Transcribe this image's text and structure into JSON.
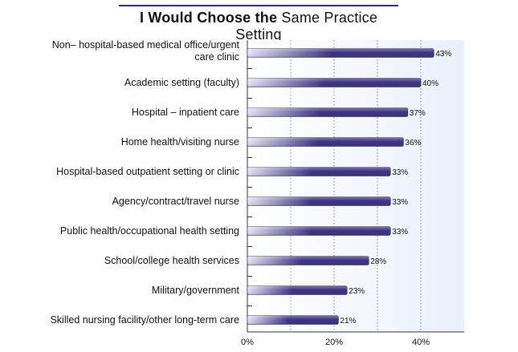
{
  "title": {
    "bold_part": "I Would Choose the",
    "regular_part": "Same Practice Setting"
  },
  "colors": {
    "bar_dark": "#3b2f80",
    "bar_light": "#e4e2f2",
    "panel_bg": "#eaf0fb",
    "title_rule": "#2e2a6b"
  },
  "chart_data": {
    "type": "bar",
    "orientation": "horizontal",
    "title": "I Would Choose the Same Practice Setting",
    "categories": [
      [
        "Non– hospital-based medical office/urgent",
        "care clinic"
      ],
      [
        "Academic setting (faculty)"
      ],
      [
        "Hospital –  inpatient care"
      ],
      [
        "Home health/visiting nurse"
      ],
      [
        "Hospital-based outpatient setting or clinic"
      ],
      [
        "Agency/contract/travel nurse"
      ],
      [
        "Public health/occupational health setting"
      ],
      [
        "School/college health services"
      ],
      [
        "Military/government"
      ],
      [
        "Skilled nursing facility/other long-term care"
      ]
    ],
    "values": [
      43,
      40,
      37,
      36,
      33,
      33,
      33,
      28,
      23,
      21
    ],
    "value_labels": [
      "43%",
      "40%",
      "37%",
      "36%",
      "33%",
      "33%",
      "33%",
      "28%",
      "23%",
      "21%"
    ],
    "xlim": [
      0,
      50
    ],
    "xticks": [
      0,
      20,
      40
    ],
    "xtick_labels": [
      "0%",
      "20%",
      "40%"
    ],
    "grid": true,
    "xlabel": "",
    "ylabel": ""
  }
}
